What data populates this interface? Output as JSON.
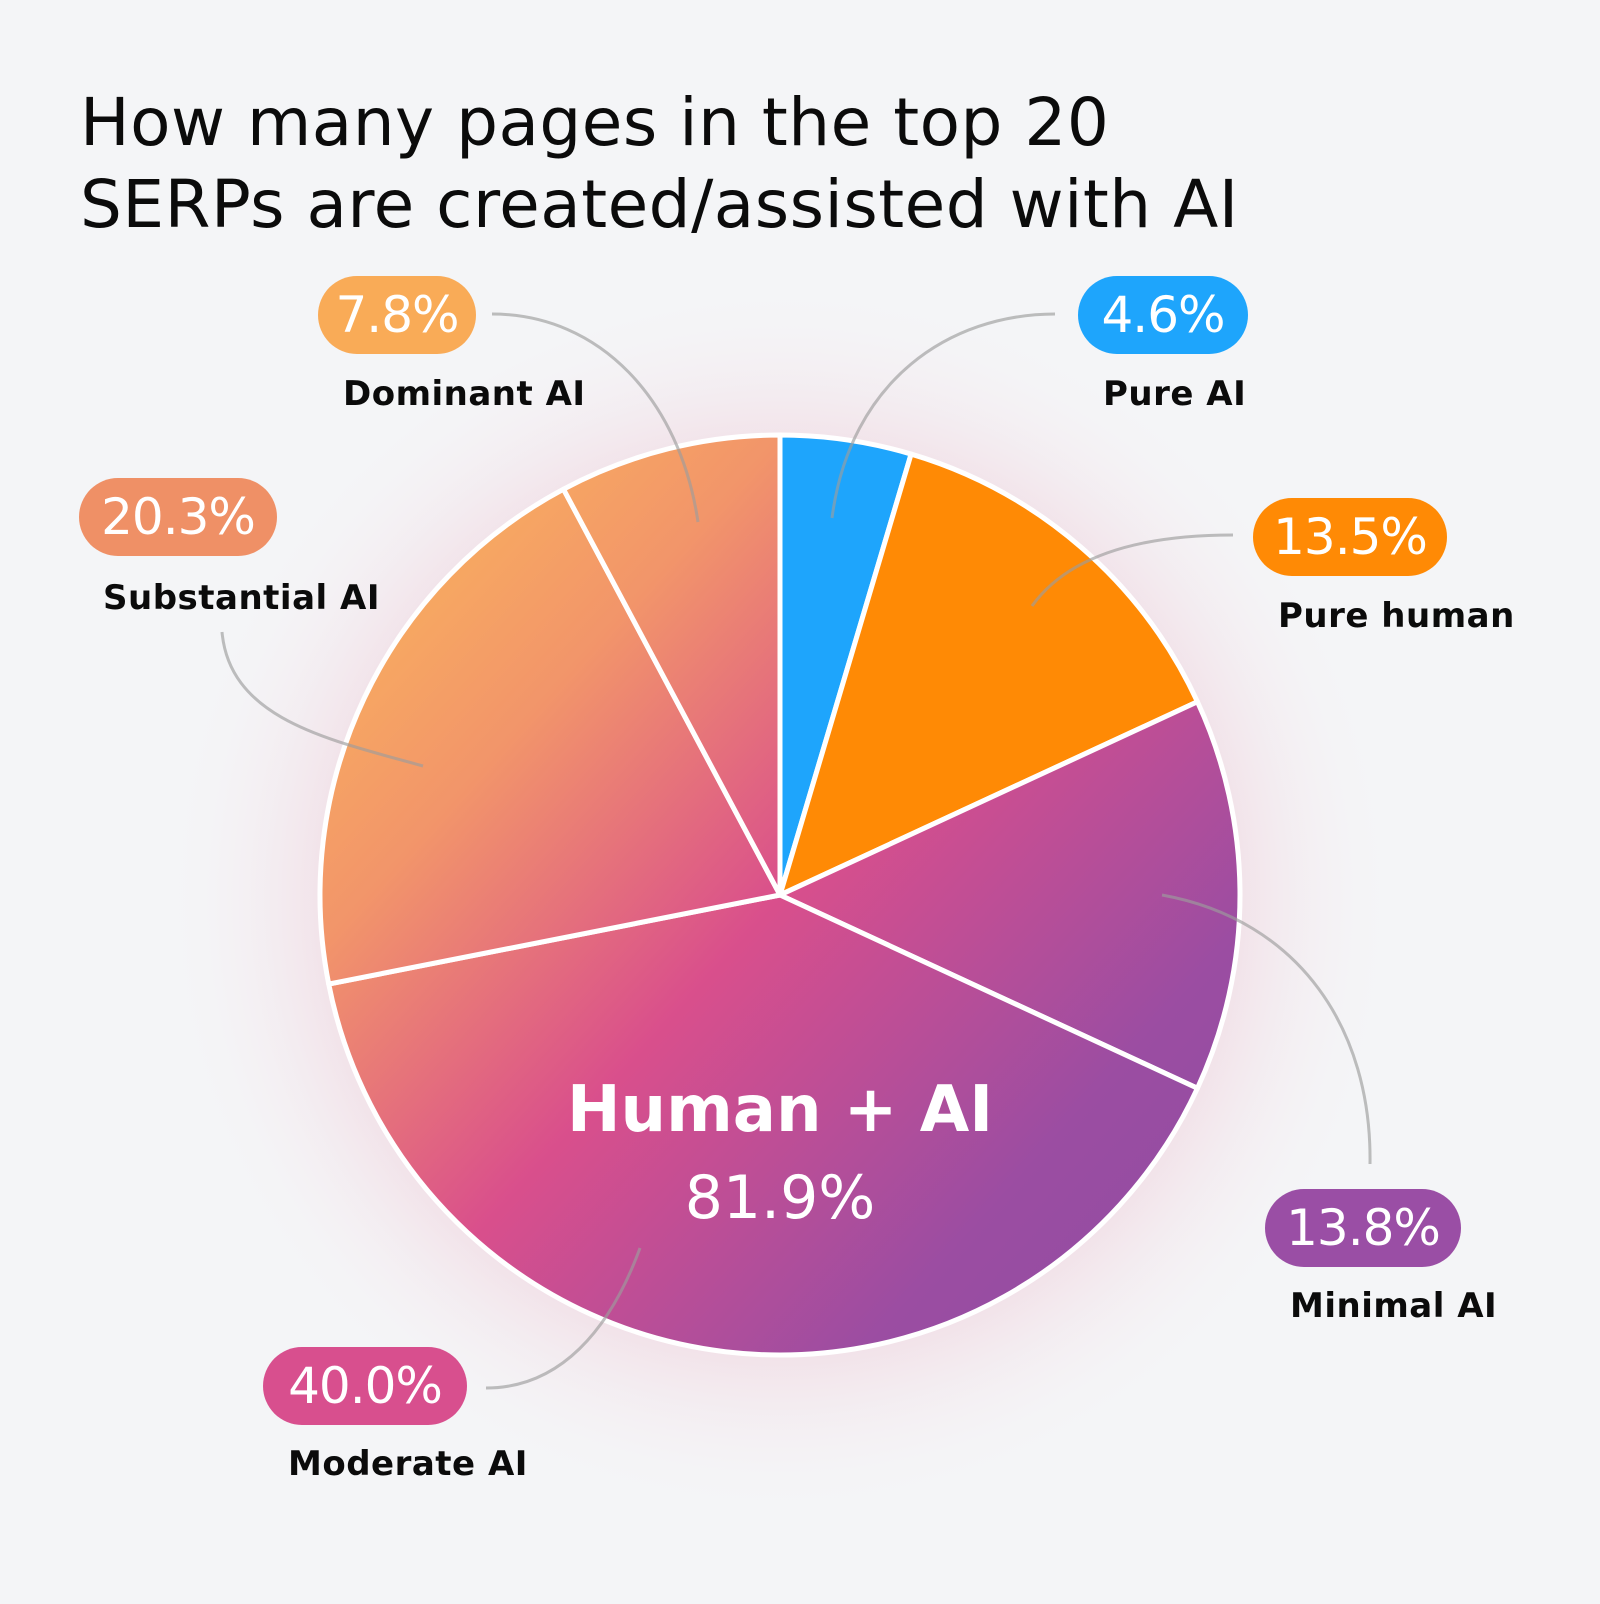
{
  "title": "How many pages in the top 20 SERPs are created/assisted with AI",
  "title_lines": [
    "How many pages in the top 20",
    "SERPs are created/assisted with AI"
  ],
  "center": {
    "label": "Human + AI",
    "value": "81.9%"
  },
  "slices": [
    {
      "name": "Pure AI",
      "value_label": "4.6%",
      "color": "#1ea5fc"
    },
    {
      "name": "Pure human",
      "value_label": "13.5%",
      "color": "#ff8a05"
    },
    {
      "name": "Minimal AI",
      "value_label": "13.8%",
      "color": "#9a4ea5"
    },
    {
      "name": "Moderate AI",
      "value_label": "40.0%",
      "color": "#d84f8e"
    },
    {
      "name": "Substantial AI",
      "value_label": "20.3%",
      "color": "#ef9066"
    },
    {
      "name": "Dominant AI",
      "value_label": "7.8%",
      "color": "#f9ab57"
    }
  ],
  "chart_data": {
    "type": "pie",
    "title": "How many pages in the top 20 SERPs are created/assisted with AI",
    "categories": [
      "Pure AI",
      "Pure human",
      "Minimal AI",
      "Moderate AI",
      "Substantial AI",
      "Dominant AI"
    ],
    "values": [
      4.6,
      13.5,
      13.8,
      40.0,
      20.3,
      7.8
    ],
    "unit": "%",
    "start_angle": "12 o'clock, clockwise",
    "colors": [
      "#1ea5fc",
      "#ff8a05",
      "#9a4ea5",
      "#d84f8e",
      "#ef9066",
      "#f9ab57"
    ],
    "annotations": [
      {
        "text": "Human + AI",
        "value": "81.9%",
        "covers": [
          "Minimal AI",
          "Moderate AI",
          "Substantial AI",
          "Dominant AI"
        ]
      }
    ],
    "legend": "none (callout labels around pie)"
  }
}
